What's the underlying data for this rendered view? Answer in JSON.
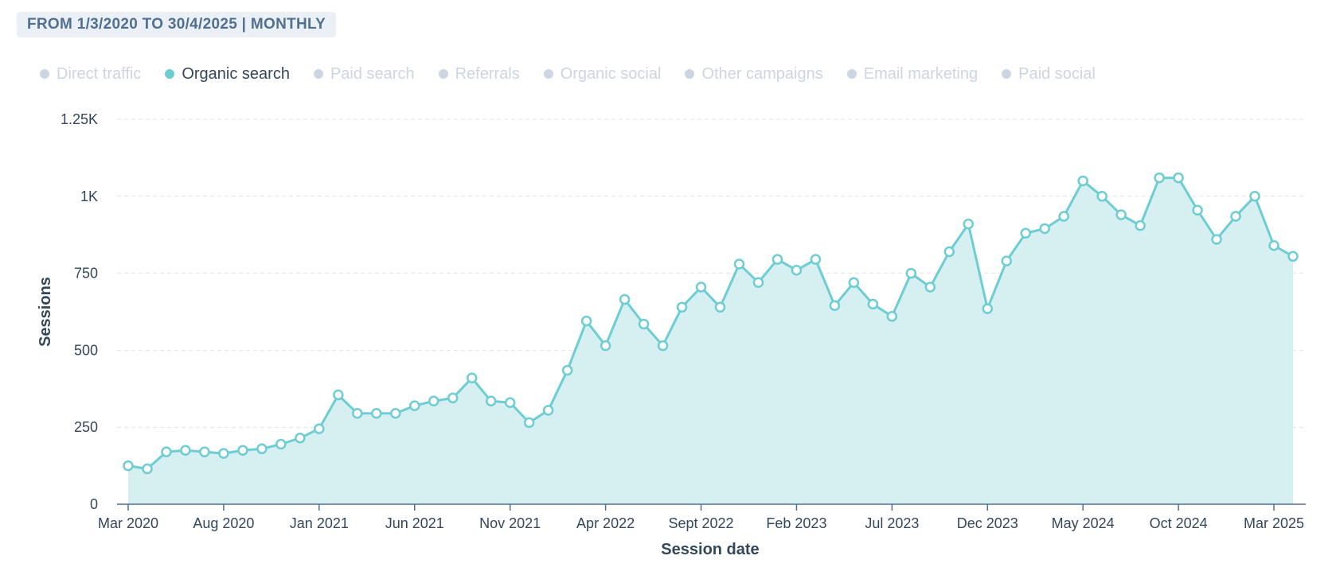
{
  "header": {
    "range_label": "FROM 1/3/2020 TO 30/4/2025 | MONTHLY"
  },
  "legend": [
    {
      "label": "Direct traffic",
      "active": false
    },
    {
      "label": "Organic search",
      "active": true
    },
    {
      "label": "Paid search",
      "active": false
    },
    {
      "label": "Referrals",
      "active": false
    },
    {
      "label": "Organic social",
      "active": false
    },
    {
      "label": "Other campaigns",
      "active": false
    },
    {
      "label": "Email marketing",
      "active": false
    },
    {
      "label": "Paid social",
      "active": false
    }
  ],
  "colors": {
    "series": "#6dcdd3",
    "fill": "#d6f0f2",
    "axis": "#516f90",
    "grid": "#dfe3eb",
    "text": "#33475b",
    "inactive": "#cbd6e2"
  },
  "chart_data": {
    "type": "area",
    "xlabel": "Session date",
    "ylabel": "Sessions",
    "ylim": [
      0,
      1250
    ],
    "y_ticks": [
      {
        "value": 0,
        "label": "0"
      },
      {
        "value": 250,
        "label": "250"
      },
      {
        "value": 500,
        "label": "500"
      },
      {
        "value": 750,
        "label": "750"
      },
      {
        "value": 1000,
        "label": "1K"
      },
      {
        "value": 1250,
        "label": "1.25K"
      }
    ],
    "x_tick_labels": [
      "Mar 2020",
      "Aug 2020",
      "Jan 2021",
      "Jun 2021",
      "Nov 2021",
      "Apr 2022",
      "Sept 2022",
      "Feb 2023",
      "Jul 2023",
      "Dec 2023",
      "May 2024",
      "Oct 2024",
      "Mar 2025"
    ],
    "x_tick_every": 5,
    "grid": true,
    "series": [
      {
        "name": "Organic search",
        "x": [
          "2020-03",
          "2020-04",
          "2020-05",
          "2020-06",
          "2020-07",
          "2020-08",
          "2020-09",
          "2020-10",
          "2020-11",
          "2020-12",
          "2021-01",
          "2021-02",
          "2021-03",
          "2021-04",
          "2021-05",
          "2021-06",
          "2021-07",
          "2021-08",
          "2021-09",
          "2021-10",
          "2021-11",
          "2021-12",
          "2022-01",
          "2022-02",
          "2022-03",
          "2022-04",
          "2022-05",
          "2022-06",
          "2022-07",
          "2022-08",
          "2022-09",
          "2022-10",
          "2022-11",
          "2022-12",
          "2023-01",
          "2023-02",
          "2023-03",
          "2023-04",
          "2023-05",
          "2023-06",
          "2023-07",
          "2023-08",
          "2023-09",
          "2023-10",
          "2023-11",
          "2023-12",
          "2024-01",
          "2024-02",
          "2024-03",
          "2024-04",
          "2024-05",
          "2024-06",
          "2024-07",
          "2024-08",
          "2024-09",
          "2024-10",
          "2024-11",
          "2024-12",
          "2025-01",
          "2025-02",
          "2025-03",
          "2025-04"
        ],
        "values": [
          125,
          115,
          170,
          175,
          170,
          165,
          175,
          180,
          195,
          215,
          245,
          355,
          295,
          295,
          295,
          320,
          335,
          345,
          410,
          335,
          330,
          265,
          305,
          435,
          595,
          515,
          665,
          585,
          515,
          640,
          705,
          640,
          780,
          720,
          795,
          760,
          795,
          645,
          720,
          650,
          610,
          750,
          705,
          820,
          910,
          635,
          790,
          880,
          895,
          935,
          1050,
          1000,
          940,
          905,
          1060,
          1060,
          955,
          860,
          935,
          1000,
          840,
          805
        ]
      }
    ]
  }
}
